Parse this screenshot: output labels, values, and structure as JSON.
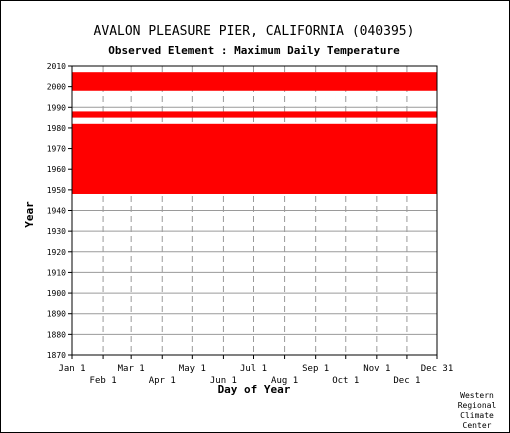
{
  "chart_data": {
    "type": "heatmap",
    "title": "AVALON PLEASURE PIER, CALIFORNIA   (040395)",
    "subtitle": "Observed Element : Maximum Daily Temperature",
    "xlabel": "Day of Year",
    "ylabel": "Year",
    "ylim": [
      1870,
      2010
    ],
    "yticks": [
      "1870",
      "1880",
      "1890",
      "1900",
      "1910",
      "1920",
      "1930",
      "1940",
      "1950",
      "1960",
      "1970",
      "1980",
      "1990",
      "2000",
      "2010"
    ],
    "xticks_top": [
      "Jan 1",
      "Mar 1",
      "May 1",
      "Jul 1",
      "Sep 1",
      "Nov 1",
      "Dec 31"
    ],
    "xticks_bottom": [
      "Feb 1",
      "Apr 1",
      "Jun 1",
      "Aug 1",
      "Oct 1",
      "Dec 1"
    ],
    "xtick_days_top": [
      1,
      60,
      121,
      182,
      244,
      305,
      365
    ],
    "xtick_days_bottom": [
      32,
      91,
      152,
      213,
      274,
      335
    ],
    "grid": true,
    "mark_color": "#ff0000",
    "coverage_bands": [
      {
        "year_start": 1948,
        "year_end": 1981,
        "day_start": 1,
        "day_end": 365
      },
      {
        "year_start": 1985,
        "year_end": 1987,
        "day_start": 1,
        "day_end": 365
      },
      {
        "year_start": 1998,
        "year_end": 2006,
        "day_start": 1,
        "day_end": 365
      }
    ],
    "credit": [
      "Western",
      "Regional",
      "Climate",
      "Center"
    ]
  }
}
